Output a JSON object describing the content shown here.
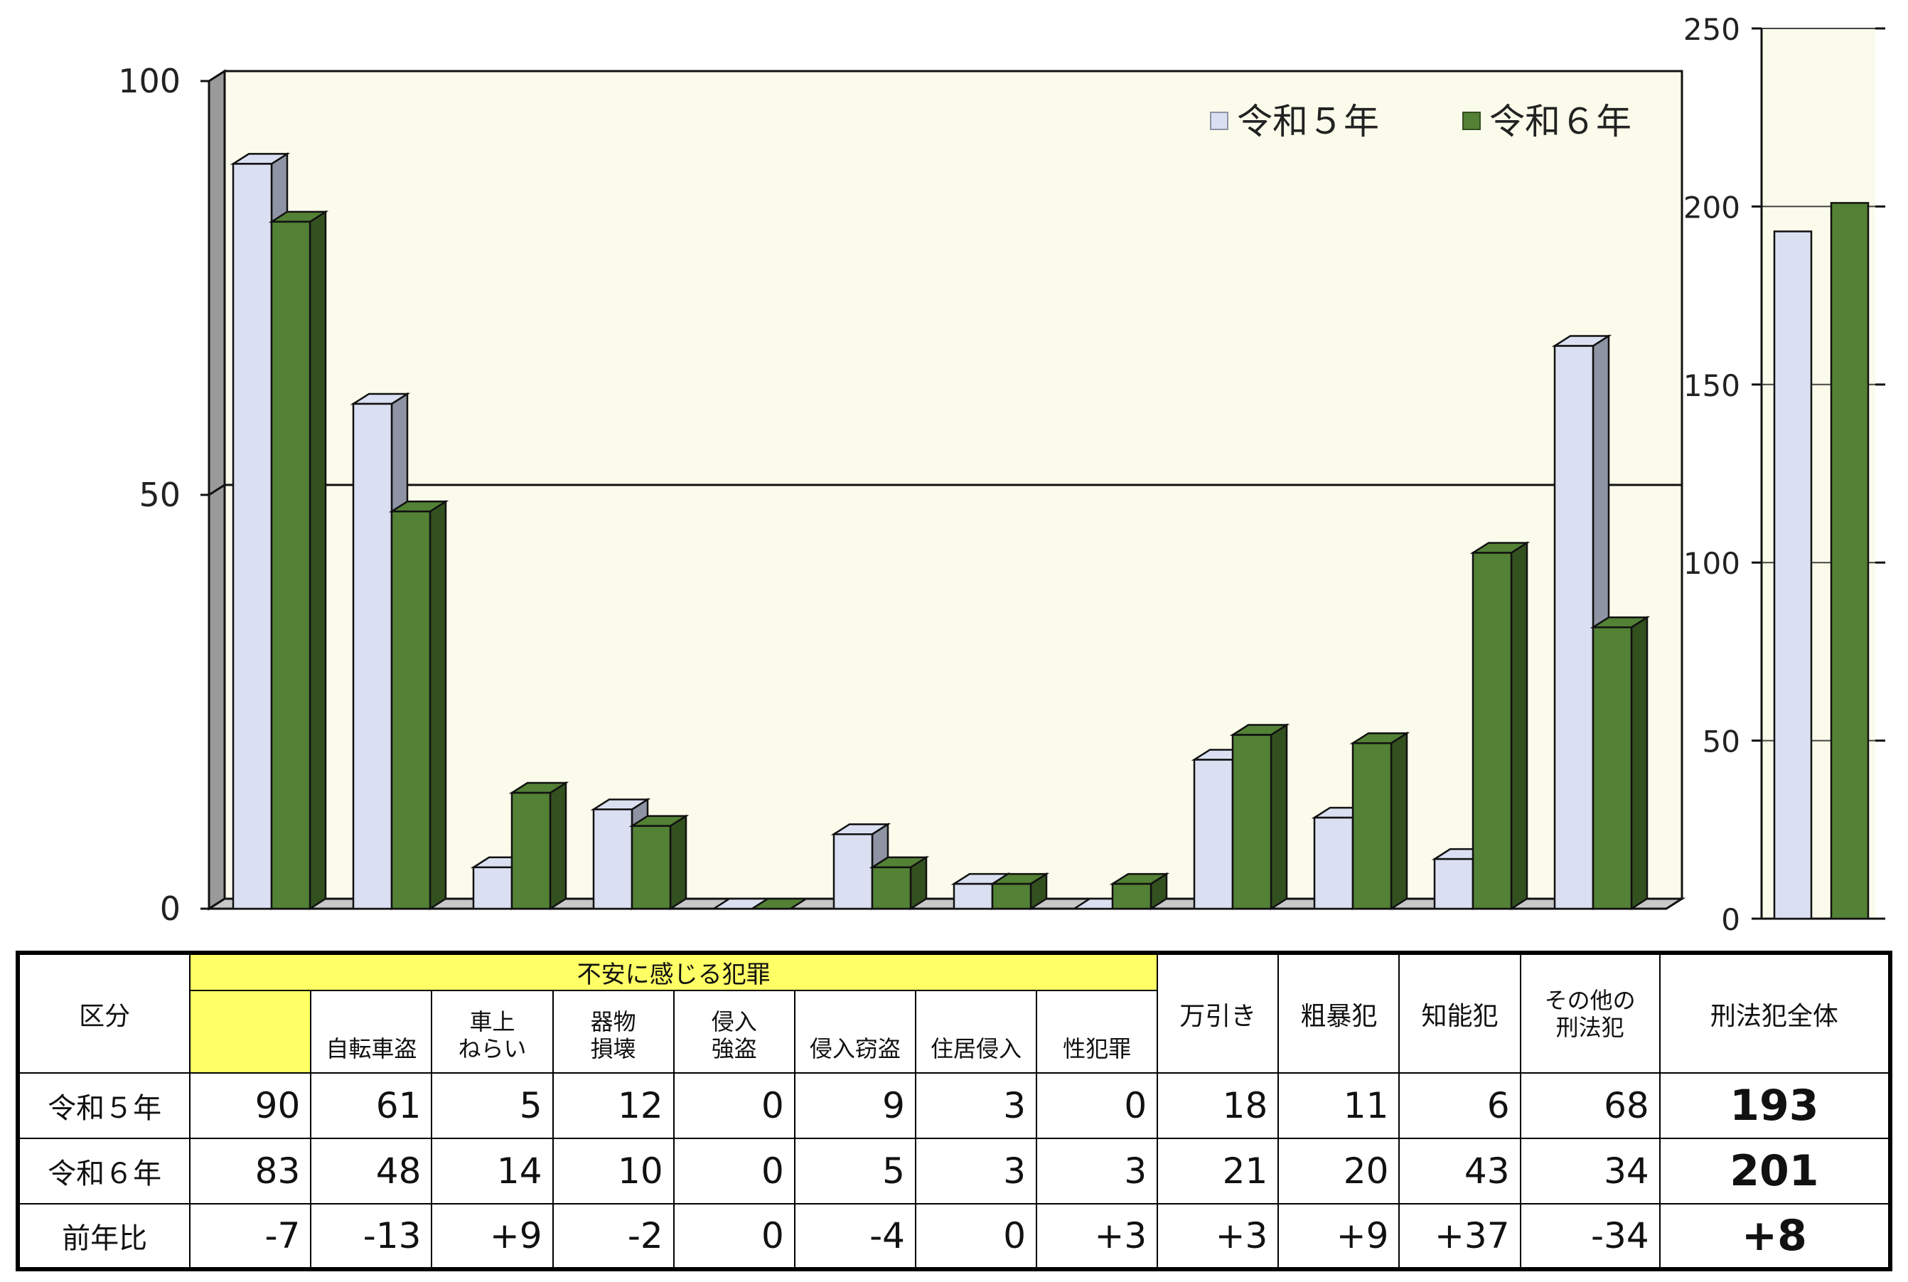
{
  "chart_data": [
    {
      "type": "bar",
      "categories": [
        "",
        "自転車盗",
        "車上ねらい",
        "器物損壊",
        "侵入強盗",
        "侵入窃盗",
        "住居侵入",
        "性犯罪",
        "万引き",
        "粗暴犯",
        "知能犯",
        "その他の刑法犯"
      ],
      "series": [
        {
          "name": "令和５年",
          "values": [
            90,
            61,
            5,
            12,
            0,
            9,
            3,
            0,
            18,
            11,
            6,
            68
          ]
        },
        {
          "name": "令和６年",
          "values": [
            83,
            48,
            14,
            10,
            0,
            5,
            3,
            3,
            21,
            20,
            43,
            34
          ]
        }
      ],
      "ylim": [
        0,
        100
      ],
      "yticks": [
        "0",
        "50",
        "100"
      ],
      "legend": "top-right",
      "grid": true
    },
    {
      "type": "bar",
      "categories": [
        "刑法犯全体"
      ],
      "series": [
        {
          "name": "令和５年",
          "values": [
            193
          ]
        },
        {
          "name": "令和６年",
          "values": [
            201
          ]
        }
      ],
      "ylim": [
        0,
        250
      ],
      "yticks": [
        "0",
        "50",
        "100",
        "150",
        "200",
        "250"
      ],
      "grid": true
    }
  ],
  "colors": {
    "r5": "#dae0f2",
    "r5_side": "#8e94a4",
    "r6": "#538135",
    "r6_side": "#33501f",
    "floor": "#c8c8c8",
    "panel": "#fbfbeb"
  },
  "table": {
    "corner": "区分",
    "group_label": "不安に感じる犯罪",
    "sub_headers": [
      "自転車盗",
      "車上\nねらい",
      "器物\n損壊",
      "侵入\n強盗",
      "侵入窃盗",
      "住居侵入",
      "性犯罪"
    ],
    "other_headers": [
      "万引き",
      "粗暴犯",
      "知能犯",
      "その他の\n刑法犯"
    ],
    "total_header": "刑法犯全体",
    "rows": [
      {
        "label": "令和５年",
        "values": [
          "90",
          "61",
          "5",
          "12",
          "0",
          "9",
          "3",
          "0",
          "18",
          "11",
          "6",
          "68"
        ],
        "total": "193"
      },
      {
        "label": "令和６年",
        "values": [
          "83",
          "48",
          "14",
          "10",
          "0",
          "5",
          "3",
          "3",
          "21",
          "20",
          "43",
          "34"
        ],
        "total": "201"
      },
      {
        "label": "前年比",
        "values": [
          "-7",
          "-13",
          "+9",
          "-2",
          "0",
          "-4",
          "0",
          "+3",
          "+3",
          "+9",
          "+37",
          "-34"
        ],
        "total": "+8"
      }
    ]
  }
}
